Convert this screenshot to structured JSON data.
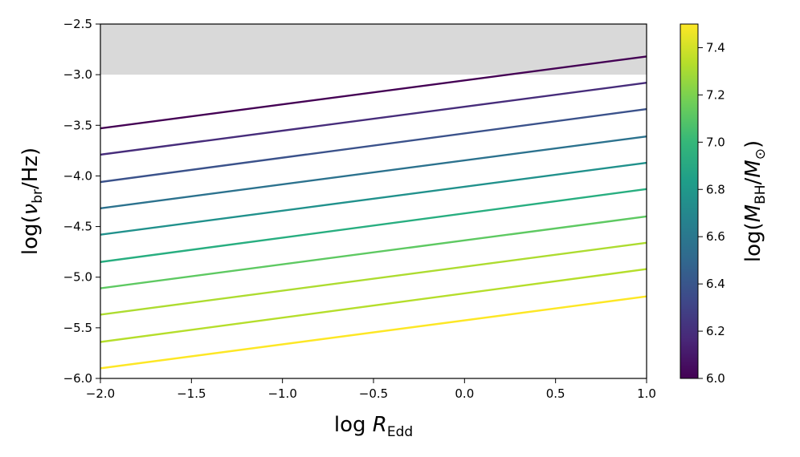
{
  "chart_data": {
    "type": "line",
    "x": [
      -2.0,
      1.0
    ],
    "xlabel": "log R_Edd",
    "ylabel": "log(ν_br/Hz)",
    "xlim": [
      -2.0,
      1.0
    ],
    "ylim": [
      -6.0,
      -2.5
    ],
    "xticks": [
      "−2.0",
      "−1.5",
      "−1.0",
      "−0.5",
      "0.0",
      "0.5",
      "1.0"
    ],
    "xtick_values": [
      -2.0,
      -1.5,
      -1.0,
      -0.5,
      0.0,
      0.5,
      1.0
    ],
    "yticks": [
      "−6.0",
      "−5.5",
      "−5.0",
      "−4.5",
      "−4.0",
      "−3.5",
      "−3.0",
      "−2.5"
    ],
    "ytick_values": [
      -6.0,
      -5.5,
      -5.0,
      -4.5,
      -4.0,
      -3.5,
      -3.0,
      -2.5
    ],
    "shaded_region": {
      "y_from": -3.0,
      "y_to": -2.5,
      "color": "#d9d9d9"
    },
    "series": [
      {
        "mbh": 6.0,
        "color": "#440154",
        "values": [
          -3.53,
          -2.82
        ]
      },
      {
        "mbh": 6.1667,
        "color": "#472d7b",
        "values": [
          -3.79,
          -3.08
        ]
      },
      {
        "mbh": 6.3333,
        "color": "#3b528b",
        "values": [
          -4.06,
          -3.34
        ]
      },
      {
        "mbh": 6.5,
        "color": "#2c728e",
        "values": [
          -4.32,
          -3.61
        ]
      },
      {
        "mbh": 6.6667,
        "color": "#21918c",
        "values": [
          -4.58,
          -3.87
        ]
      },
      {
        "mbh": 6.8333,
        "color": "#28ae80",
        "values": [
          -4.85,
          -4.13
        ]
      },
      {
        "mbh": 7.0,
        "color": "#5ec962",
        "values": [
          -5.11,
          -4.4
        ]
      },
      {
        "mbh": 7.1667,
        "color": "#addc30",
        "values": [
          -5.37,
          -4.66
        ]
      },
      {
        "mbh": 7.3333,
        "color": "#b5de2b",
        "values": [
          -5.64,
          -4.92
        ]
      },
      {
        "mbh": 7.5,
        "color": "#fde725",
        "values": [
          -5.9,
          -5.19
        ]
      }
    ],
    "colorbar": {
      "label": "log(M_BH/M_⊙)",
      "range": [
        6.0,
        7.5
      ],
      "ticks": [
        "6.0",
        "6.2",
        "6.4",
        "6.6",
        "6.8",
        "7.0",
        "7.2",
        "7.4"
      ],
      "tick_values": [
        6.0,
        6.2,
        6.4,
        6.6,
        6.8,
        7.0,
        7.2,
        7.4
      ],
      "colormap": "viridis",
      "stops": [
        "#440154",
        "#482878",
        "#3e4989",
        "#31688e",
        "#26828e",
        "#1f9e89",
        "#35b779",
        "#6ece58",
        "#b5de2b",
        "#fde725"
      ]
    }
  }
}
